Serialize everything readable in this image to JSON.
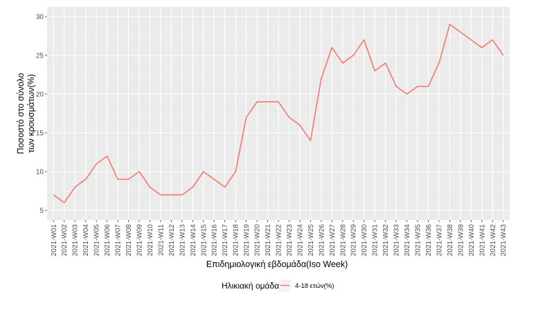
{
  "chart_data": {
    "type": "line",
    "title": "",
    "xlabel": "Επιδημιολογική εβδομάδα(Iso Week)",
    "ylabel_lines": [
      "Ποσοστό στο σύνολο",
      "των κρουσμάτων(%)"
    ],
    "ylim": [
      5,
      30
    ],
    "yticks": [
      5,
      10,
      15,
      20,
      25,
      30
    ],
    "grid": true,
    "legend": {
      "title": "Ηλικιακή ομάδα",
      "placement": "bottom"
    },
    "categories": [
      "2021-W01",
      "2021-W02",
      "2021-W03",
      "2021-W04",
      "2021-W05",
      "2021-W06",
      "2021-W07",
      "2021-W08",
      "2021-W09",
      "2021-W10",
      "2021-W11",
      "2021-W12",
      "2021-W13",
      "2021-W14",
      "2021-W15",
      "2021-W16",
      "2021-W17",
      "2021-W18",
      "2021-W19",
      "2021-W20",
      "2021-W21",
      "2021-W22",
      "2021-W23",
      "2021-W24",
      "2021-W25",
      "2021-W26",
      "2021-W27",
      "2021-W28",
      "2021-W29",
      "2021-W30",
      "2021-W31",
      "2021-W32",
      "2021-W33",
      "2021-W34",
      "2021-W35",
      "2021-W36",
      "2021-W37",
      "2021-W38",
      "2021-W39",
      "2021-W40",
      "2021-W41",
      "2021-W42",
      "2021-W43"
    ],
    "series": [
      {
        "name": "4-18 ετών(%)",
        "color": "#f8766d",
        "values": [
          7,
          6,
          8,
          9,
          11,
          12,
          9,
          9,
          10,
          8,
          7,
          7,
          7,
          8,
          10,
          9,
          8,
          10,
          17,
          19,
          19,
          19,
          17,
          16,
          14,
          22,
          26,
          24,
          25,
          27,
          23,
          24,
          21,
          20,
          21,
          21,
          24,
          29,
          28,
          27,
          26,
          27,
          25
        ]
      }
    ]
  }
}
